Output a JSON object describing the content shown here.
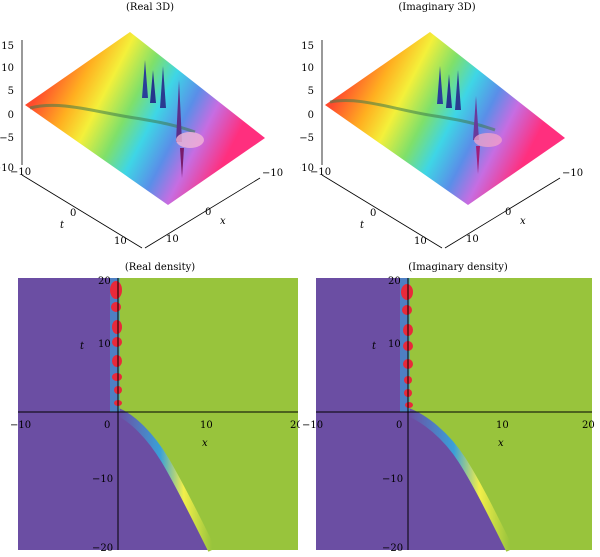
{
  "panels": {
    "real3d": {
      "title": "(Real 3D)",
      "z_ticks": [
        "15",
        "10",
        "5",
        "0",
        "−5",
        "−10"
      ],
      "t_label": "t",
      "t_ticks": [
        "−10",
        "0",
        "10"
      ],
      "x_label": "x",
      "x_ticks": [
        "−10",
        "0",
        "10"
      ]
    },
    "imag3d": {
      "title": "(Imaginary 3D)",
      "z_ticks": [
        "15",
        "10",
        "5",
        "0",
        "−5",
        "−10"
      ],
      "t_label": "t",
      "t_ticks": [
        "−10",
        "0",
        "10"
      ],
      "x_label": "x",
      "x_ticks": [
        "−10",
        "0",
        "10"
      ]
    },
    "realdens": {
      "title": "(Real density)",
      "x_label": "x",
      "t_label": "t",
      "x_ticks": [
        "−10",
        "0",
        "10",
        "20"
      ],
      "t_ticks": [
        "20",
        "10",
        "−10",
        "−20"
      ]
    },
    "imagdens": {
      "title": "(Imaginary density)",
      "x_label": "x",
      "t_label": "t",
      "x_ticks": [
        "−10",
        "0",
        "10",
        "20"
      ],
      "t_ticks": [
        "20",
        "10",
        "−10",
        "−20"
      ]
    }
  },
  "colors": {
    "density_background": "#6b4ea3",
    "density_right": "#98c43c",
    "peak_red": "#e8293a",
    "curve_blue": "#3aa0d8"
  }
}
